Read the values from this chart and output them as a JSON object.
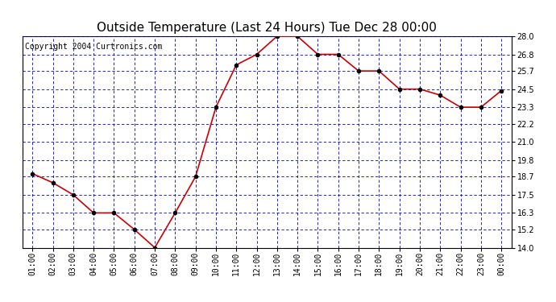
{
  "title": "Outside Temperature (Last 24 Hours) Tue Dec 28 00:00",
  "copyright": "Copyright 2004 Curtronics.com",
  "x_labels": [
    "01:00",
    "02:00",
    "03:00",
    "04:00",
    "05:00",
    "06:00",
    "07:00",
    "08:00",
    "09:00",
    "10:00",
    "11:00",
    "12:00",
    "13:00",
    "14:00",
    "15:00",
    "16:00",
    "17:00",
    "18:00",
    "19:00",
    "20:00",
    "21:00",
    "22:00",
    "23:00",
    "00:00"
  ],
  "y_values": [
    18.9,
    18.3,
    17.5,
    16.3,
    16.3,
    15.2,
    14.0,
    16.3,
    18.7,
    23.3,
    26.1,
    26.8,
    28.0,
    28.0,
    26.8,
    26.8,
    25.7,
    25.7,
    24.5,
    24.5,
    24.1,
    23.3,
    23.3,
    24.4
  ],
  "ylim_min": 14.0,
  "ylim_max": 28.0,
  "yticks": [
    14.0,
    15.2,
    16.3,
    17.5,
    18.7,
    19.8,
    21.0,
    22.2,
    23.3,
    24.5,
    25.7,
    26.8,
    28.0
  ],
  "line_color": "#cc0000",
  "marker_color": "#000000",
  "grid_color": "#0000cc",
  "background_color": "#ffffff",
  "title_fontsize": 11,
  "copyright_fontsize": 7,
  "tick_fontsize": 7,
  "axis_label_color": "#000000"
}
